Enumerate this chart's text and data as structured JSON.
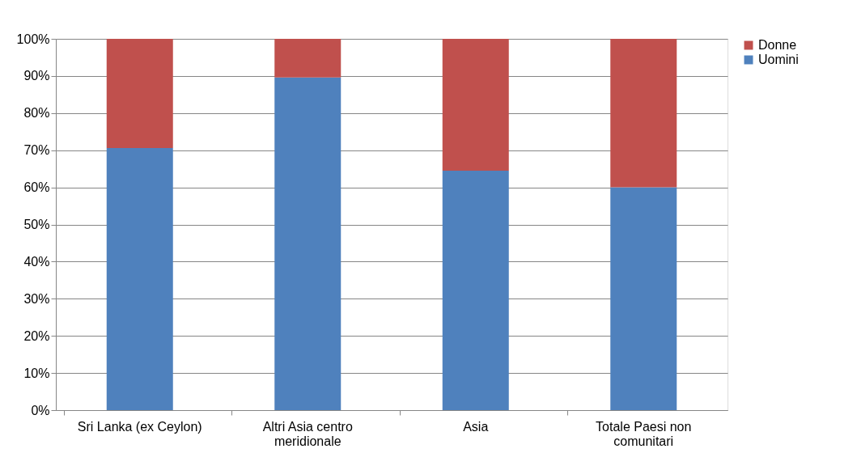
{
  "chart_data": {
    "type": "bar",
    "stacked": true,
    "categories": [
      "Sri Lanka (ex Ceylon)",
      "Altri Asia centro\nmeridionale",
      "Asia",
      "Totale Paesi non\ncomunitari"
    ],
    "series": [
      {
        "name": "Uomini",
        "color": "#4f81bd",
        "values": [
          70.6,
          89.6,
          64.5,
          60.0
        ]
      },
      {
        "name": "Donne",
        "color": "#c0504d",
        "values": [
          29.4,
          10.4,
          35.5,
          40.0
        ]
      }
    ],
    "ylim": [
      0,
      100
    ],
    "yticks": [
      {
        "value": 0,
        "label": "0%"
      },
      {
        "value": 10,
        "label": "10%"
      },
      {
        "value": 20,
        "label": "20%"
      },
      {
        "value": 30,
        "label": "30%"
      },
      {
        "value": 40,
        "label": "40%"
      },
      {
        "value": 50,
        "label": "50%"
      },
      {
        "value": 60,
        "label": "60%"
      },
      {
        "value": 70,
        "label": "70%"
      },
      {
        "value": 80,
        "label": "80%"
      },
      {
        "value": 90,
        "label": "90%"
      },
      {
        "value": 100,
        "label": "100%"
      }
    ],
    "grid": "y",
    "legend": "right"
  }
}
